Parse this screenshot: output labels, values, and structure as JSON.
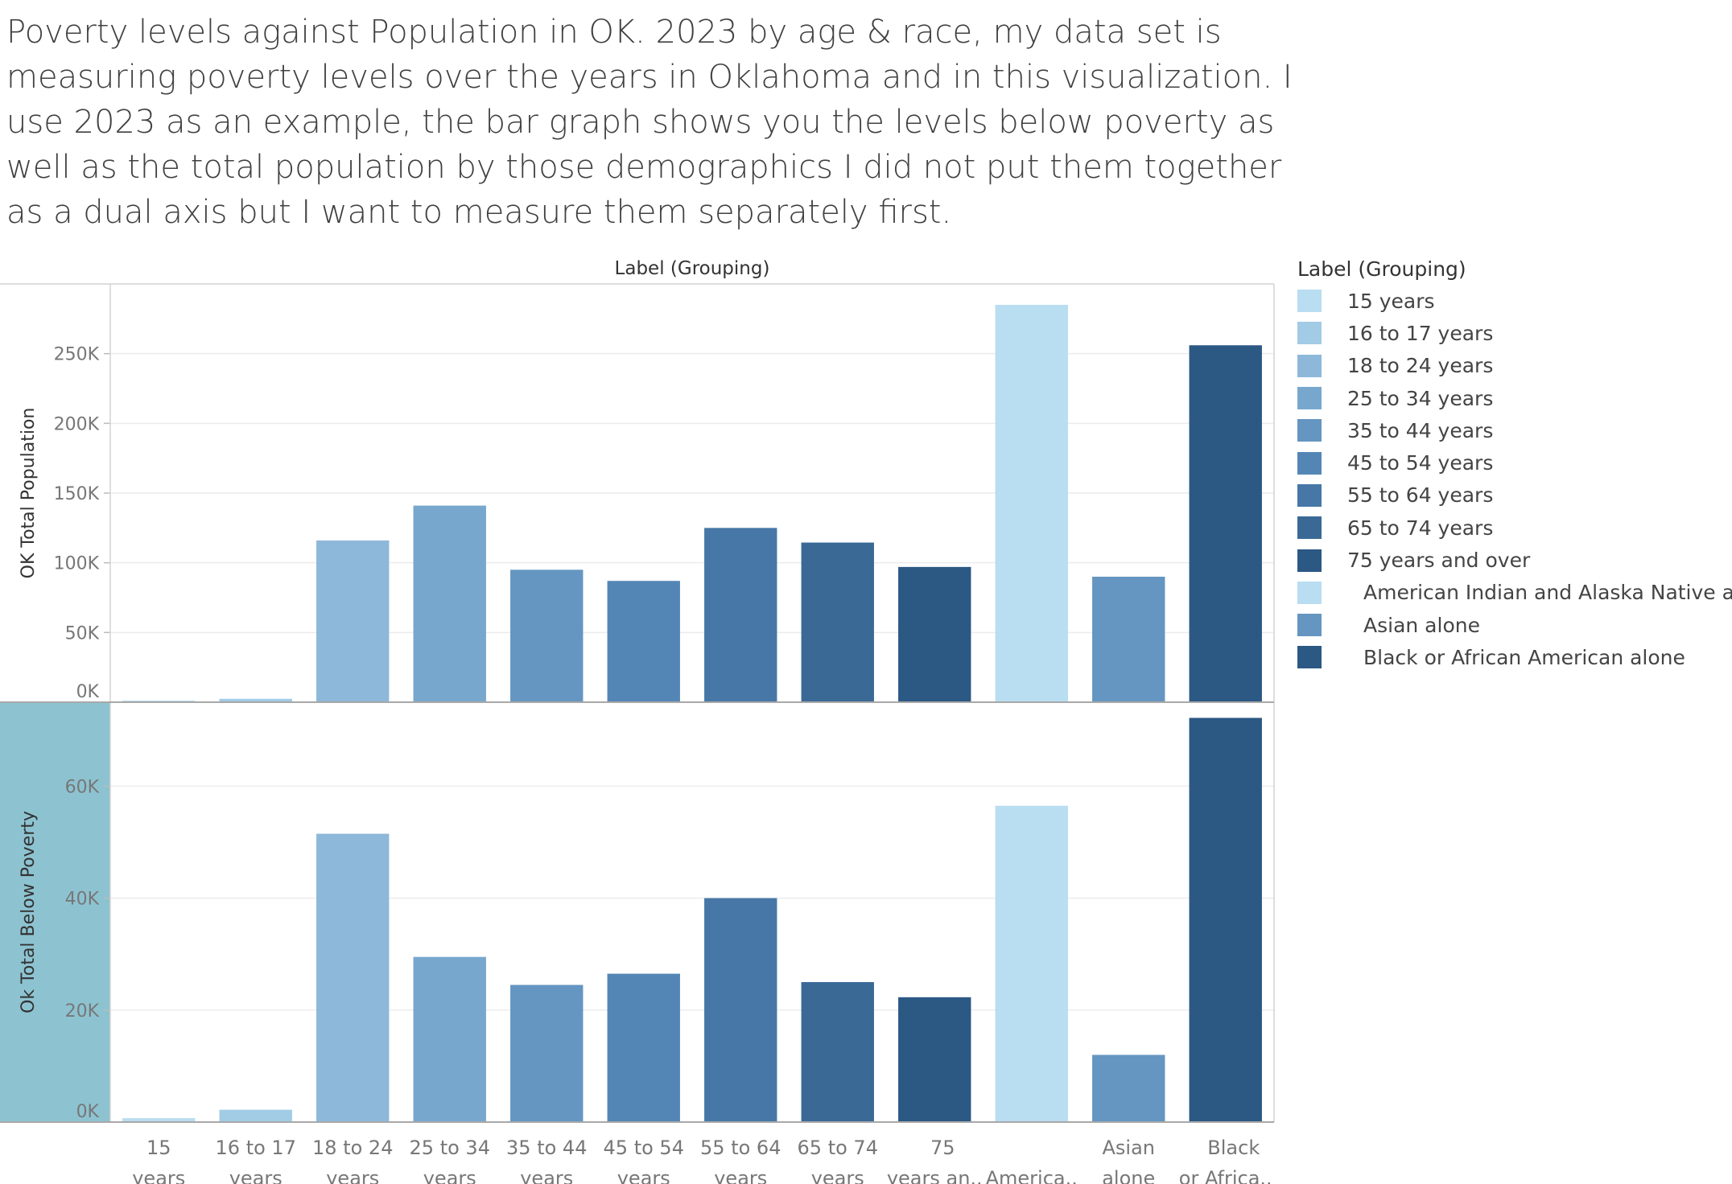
{
  "caption": "Poverty levels against Population in OK. 2023 by age & race, my data set is measuring poverty levels over the years in Oklahoma and in this visualization. I use 2023 as an example, the bar graph shows you the levels below poverty as well as the total population by those demographics I did not put them together as a dual axis but I want to measure them separately first.",
  "chart_data": {
    "type": "bar",
    "header_title": "Label (Grouping)",
    "categories": [
      "15 years",
      "16 to 17 years",
      "18 to 24 years",
      "25 to 34 years",
      "35 to 44 years",
      "45 to 54 years",
      "55 to 64 years",
      "65 to 74 years",
      "75 years and over",
      "American Indian and Alaska Native alone",
      "Asian alone",
      "Black or African American alone"
    ],
    "category_tick_labels": [
      [
        "15",
        "years"
      ],
      [
        "16 to 17",
        "years"
      ],
      [
        "18 to 24",
        "years"
      ],
      [
        "25 to 34",
        "years"
      ],
      [
        "35 to 44",
        "years"
      ],
      [
        "45 to 54",
        "years"
      ],
      [
        "55 to 64",
        "years"
      ],
      [
        "65 to 74",
        "years"
      ],
      [
        "75",
        "years an.."
      ],
      [
        "",
        "America.."
      ],
      [
        "Asian",
        "alone"
      ],
      [
        "Black",
        "or Africa.."
      ]
    ],
    "colors": [
      "#b9ddf1",
      "#a2cbe6",
      "#8db8da",
      "#78a7cd",
      "#6496c1",
      "#5486b5",
      "#4677a6",
      "#3a6996",
      "#2c5884",
      "#b9ddf1",
      "#6496c1",
      "#2c5884"
    ],
    "series": [
      {
        "name": "OK Total Population",
        "ylabel": "OK Total Population",
        "values": [
          1200,
          2400,
          116000,
          141000,
          95000,
          87000,
          125000,
          114500,
          97000,
          285000,
          90000,
          256000
        ],
        "ylim": [
          0,
          300000
        ],
        "ticks": [
          0,
          50000,
          100000,
          150000,
          200000,
          250000
        ],
        "tick_labels": [
          "0K",
          "50K",
          "100K",
          "150K",
          "200K",
          "250K"
        ],
        "highlighted": false
      },
      {
        "name": "Ok Total Below Poverty",
        "ylabel": "Ok Total Below Poverty",
        "values": [
          700,
          2200,
          51500,
          29500,
          24500,
          26500,
          40000,
          25000,
          22300,
          56500,
          12000,
          72200
        ],
        "ylim": [
          0,
          75000
        ],
        "ticks": [
          0,
          20000,
          40000,
          60000
        ],
        "tick_labels": [
          "0K",
          "20K",
          "40K",
          "60K"
        ],
        "highlighted": true
      }
    ],
    "legend": {
      "title": "Label (Grouping)",
      "position": "right",
      "items": [
        {
          "label": "15 years",
          "color": "#b9ddf1",
          "indent": false
        },
        {
          "label": "16 to 17 years",
          "color": "#a2cbe6",
          "indent": false
        },
        {
          "label": "18 to 24 years",
          "color": "#8db8da",
          "indent": false
        },
        {
          "label": "25 to 34 years",
          "color": "#78a7cd",
          "indent": false
        },
        {
          "label": "35 to 44 years",
          "color": "#6496c1",
          "indent": false
        },
        {
          "label": "45 to 54 years",
          "color": "#5486b5",
          "indent": false
        },
        {
          "label": "55 to 64 years",
          "color": "#4677a6",
          "indent": false
        },
        {
          "label": "65 to 74 years",
          "color": "#3a6996",
          "indent": false
        },
        {
          "label": "75 years and over",
          "color": "#2c5884",
          "indent": false
        },
        {
          "label": "American Indian and Alaska Native alone",
          "color": "#b9ddf1",
          "indent": true
        },
        {
          "label": "Asian alone",
          "color": "#6496c1",
          "indent": true
        },
        {
          "label": "Black or African American alone",
          "color": "#2c5884",
          "indent": true
        }
      ]
    },
    "grid": true
  }
}
